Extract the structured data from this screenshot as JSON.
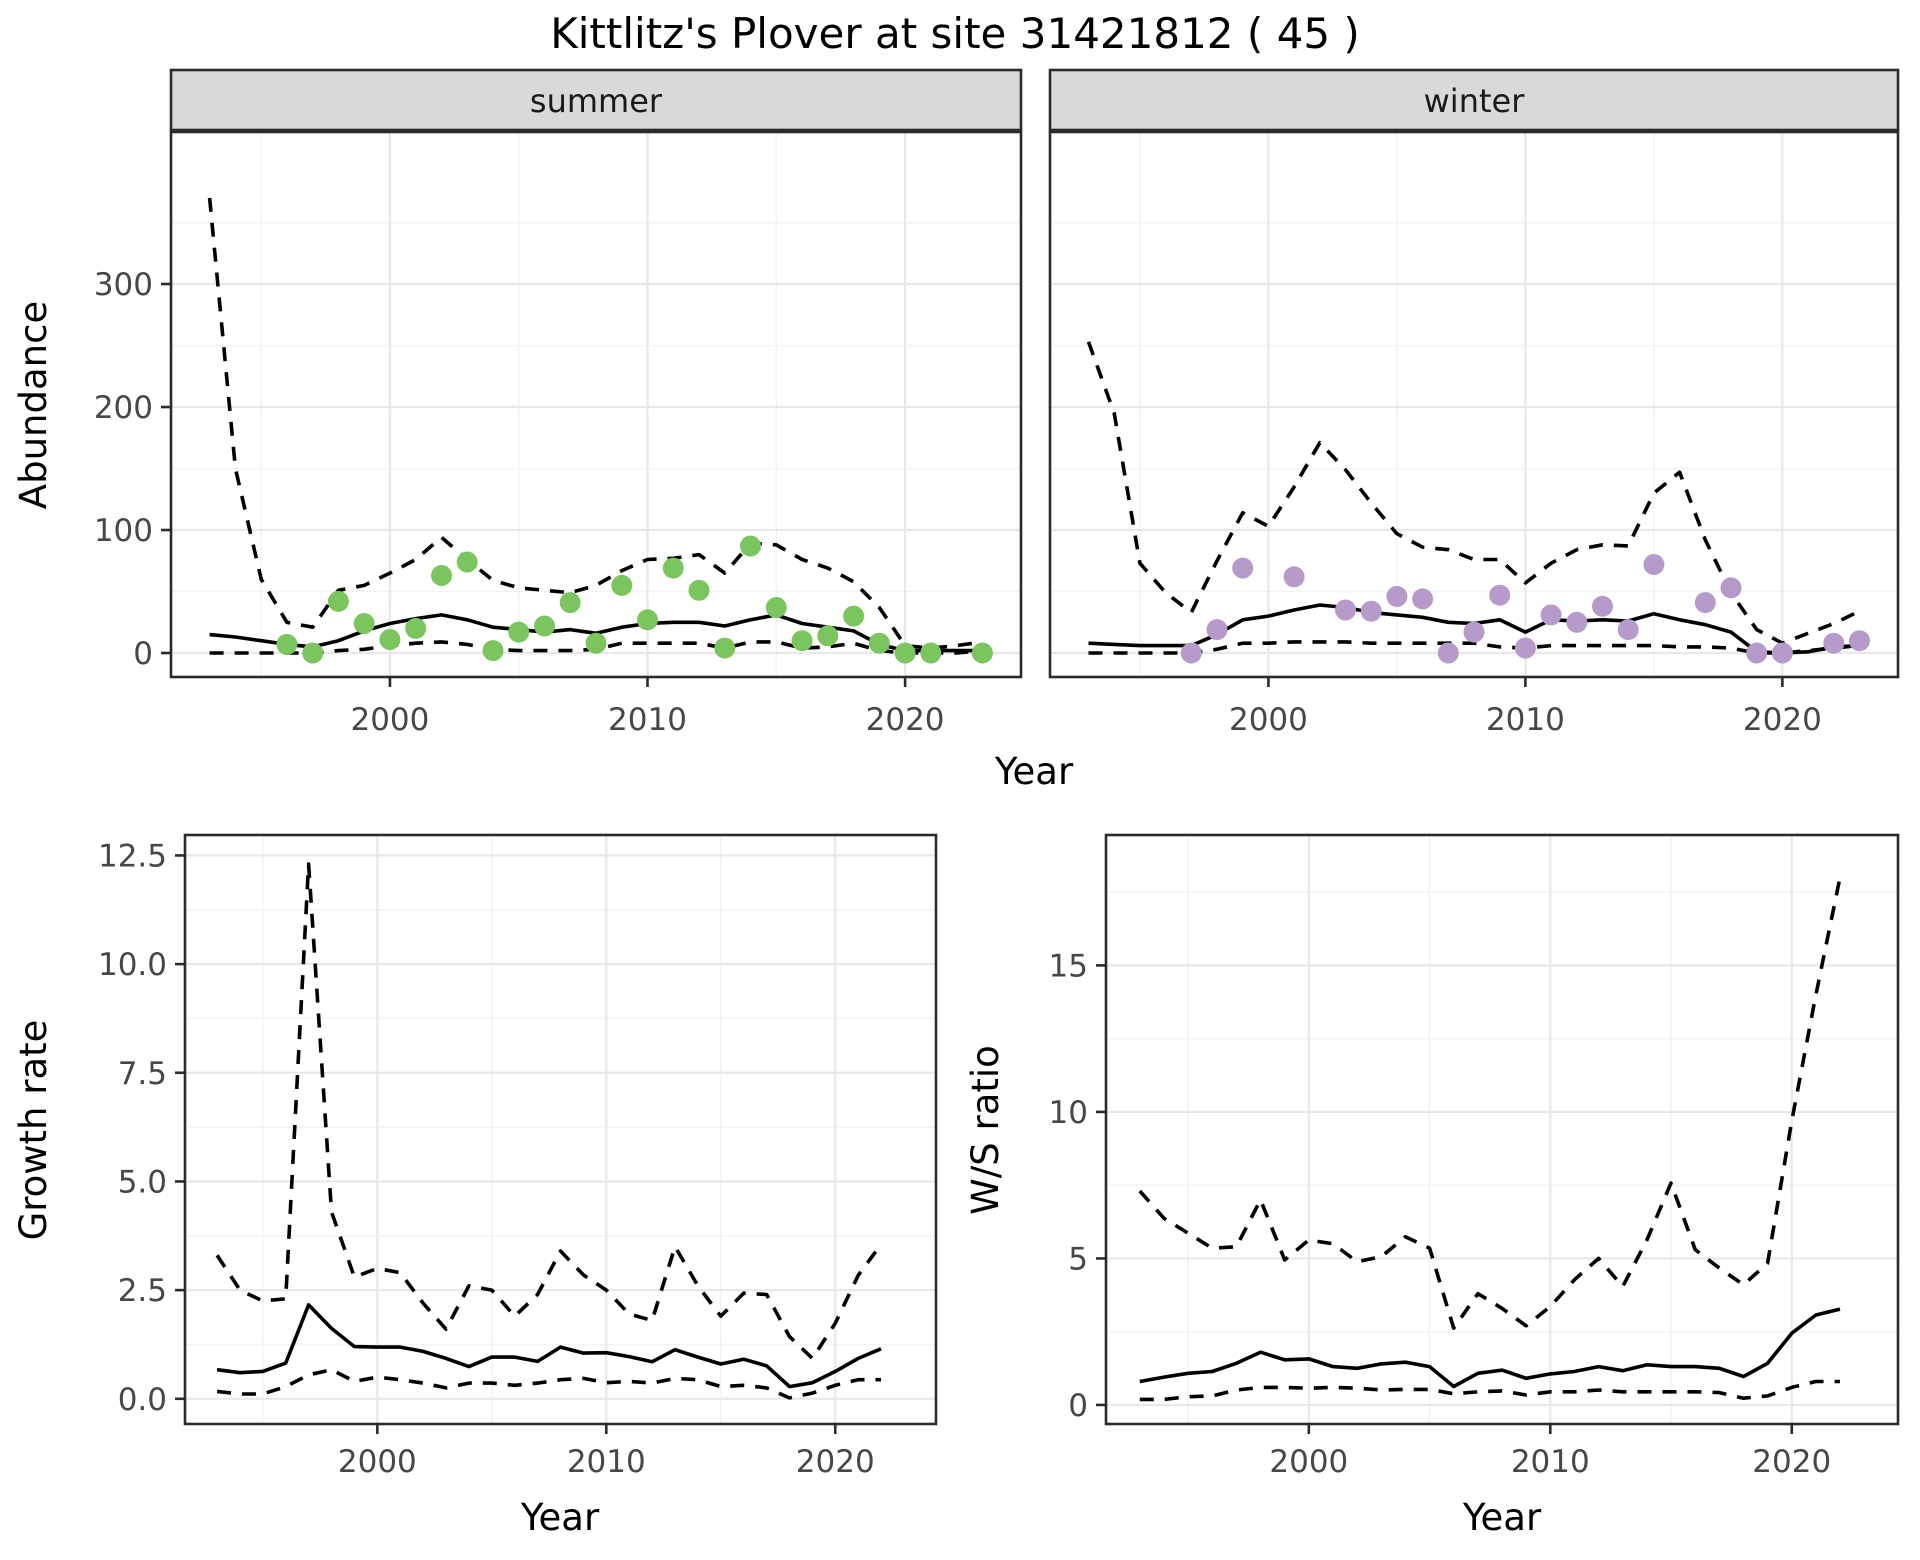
{
  "title": "Kittlitz's Plover at site 31421812 ( 45 )",
  "row1_xlabel": "Year",
  "colors": {
    "summer_points": "#7bc55e",
    "winter_points": "#b69bca",
    "line": "#000000",
    "strip_bg": "#d9d9d9",
    "panel_border": "#2b2b2b",
    "grid_major": "#e8e8e8",
    "grid_minor": "#f3f3f3",
    "axis_tick": "#2b2b2b",
    "axis_text": "#474747"
  },
  "chart_data": [
    {
      "id": "abundance-summer",
      "type": "line",
      "facet_label": "summer",
      "ylabel": "Abundance",
      "xlabel": "",
      "xlim": [
        1991.5,
        2024.5
      ],
      "ylim": [
        -19.5,
        423.6
      ],
      "xticks": [
        2000,
        2010,
        2020
      ],
      "xtick_labels": [
        "2000",
        "2010",
        "2020"
      ],
      "yticks": [
        0,
        100,
        200,
        300
      ],
      "ytick_labels": [
        "0",
        "100",
        "200",
        "300"
      ],
      "x_minor": [
        1995,
        2005,
        2015
      ],
      "y_minor": [
        50,
        150,
        250,
        350
      ],
      "grid": true,
      "legend": "none",
      "point_color": "#7bc55e",
      "series": [
        {
          "name": "upper_ci",
          "style": "dashed",
          "x": [
            1993,
            1994,
            1995,
            1996,
            1997,
            1998,
            1999,
            2000,
            2001,
            2002,
            2003,
            2004,
            2005,
            2006,
            2007,
            2008,
            2009,
            2010,
            2011,
            2012,
            2013,
            2014,
            2015,
            2016,
            2017,
            2018,
            2019,
            2020,
            2021,
            2022,
            2023
          ],
          "y": [
            370,
            150,
            60,
            25,
            21,
            51,
            55,
            65,
            76,
            94,
            76,
            59,
            53,
            51,
            49,
            55,
            67,
            76,
            77,
            80,
            65,
            89,
            88,
            76,
            69,
            58,
            37,
            6,
            4,
            6,
            9
          ]
        },
        {
          "name": "median",
          "style": "solid",
          "x": [
            1993,
            1994,
            1995,
            1996,
            1997,
            1998,
            1999,
            2000,
            2001,
            2002,
            2003,
            2004,
            2005,
            2006,
            2007,
            2008,
            2009,
            2010,
            2011,
            2012,
            2013,
            2014,
            2015,
            2016,
            2017,
            2018,
            2019,
            2020,
            2021,
            2022,
            2023
          ],
          "y": [
            15,
            13,
            10,
            7,
            5,
            10,
            18,
            24,
            28,
            31,
            27,
            21,
            19,
            17,
            19,
            16,
            21,
            24,
            25,
            25,
            22,
            27,
            31,
            24,
            21,
            18,
            7,
            2,
            2,
            2,
            2
          ]
        },
        {
          "name": "lower_ci",
          "style": "dashed",
          "x": [
            1993,
            1994,
            1995,
            1996,
            1997,
            1998,
            1999,
            2000,
            2001,
            2002,
            2003,
            2004,
            2005,
            2006,
            2007,
            2008,
            2009,
            2010,
            2011,
            2012,
            2013,
            2014,
            2015,
            2016,
            2017,
            2018,
            2019,
            2020,
            2021,
            2022,
            2023
          ],
          "y": [
            0,
            0,
            0,
            0,
            0,
            2,
            3,
            6,
            8,
            9,
            7,
            3,
            2,
            2,
            2,
            3,
            8,
            8,
            8,
            8,
            4,
            9,
            9,
            4,
            5,
            8,
            2,
            0,
            0,
            0,
            2
          ]
        }
      ],
      "points": {
        "x": [
          1996,
          1997,
          1998,
          1999,
          2000,
          2001,
          2002,
          2003,
          2004,
          2005,
          2006,
          2007,
          2008,
          2009,
          2010,
          2011,
          2012,
          2013,
          2014,
          2015,
          2016,
          2017,
          2018,
          2019,
          2020,
          2021,
          2023
        ],
        "y": [
          7,
          0,
          42,
          24,
          11,
          20,
          63,
          74,
          2,
          17,
          22,
          41,
          8,
          55,
          27,
          69,
          51,
          4,
          87,
          37,
          10,
          14,
          30,
          8,
          0,
          0,
          0
        ]
      }
    },
    {
      "id": "abundance-winter",
      "type": "line",
      "facet_label": "winter",
      "ylabel": "",
      "xlabel": "",
      "xlim": [
        1991.5,
        2024.5
      ],
      "ylim": [
        -19.5,
        423.6
      ],
      "xticks": [
        2000,
        2010,
        2020
      ],
      "xtick_labels": [
        "2000",
        "2010",
        "2020"
      ],
      "yticks": [
        0,
        100,
        200,
        300
      ],
      "ytick_labels": [
        "0",
        "100",
        "200",
        "300"
      ],
      "x_minor": [
        1995,
        2005,
        2015
      ],
      "y_minor": [
        50,
        150,
        250,
        350
      ],
      "grid": true,
      "legend": "none",
      "point_color": "#b69bca",
      "series": [
        {
          "name": "upper_ci",
          "style": "dashed",
          "x": [
            1993,
            1994,
            1995,
            1996,
            1997,
            1998,
            1999,
            2000,
            2001,
            2002,
            2003,
            2004,
            2005,
            2006,
            2007,
            2008,
            2009,
            2010,
            2011,
            2012,
            2013,
            2014,
            2015,
            2016,
            2017,
            2018,
            2019,
            2020,
            2021,
            2022,
            2023
          ],
          "y": [
            253,
            195,
            73,
            49,
            33,
            75,
            114,
            103,
            135,
            171,
            149,
            122,
            97,
            86,
            84,
            76,
            76,
            57,
            73,
            84,
            88,
            87,
            130,
            147,
            92,
            49,
            19,
            8,
            16,
            24,
            34
          ]
        },
        {
          "name": "median",
          "style": "solid",
          "x": [
            1993,
            1994,
            1995,
            1996,
            1997,
            1998,
            1999,
            2000,
            2001,
            2002,
            2003,
            2004,
            2005,
            2006,
            2007,
            2008,
            2009,
            2010,
            2011,
            2012,
            2013,
            2014,
            2015,
            2016,
            2017,
            2018,
            2019,
            2020,
            2021,
            2022,
            2023
          ],
          "y": [
            8,
            7,
            6,
            6,
            6,
            15,
            27,
            30,
            35,
            39,
            37,
            33,
            31,
            29,
            25,
            24,
            27,
            17,
            27,
            26,
            27,
            26,
            32,
            27,
            23,
            17,
            1,
            0,
            1,
            5,
            6
          ]
        },
        {
          "name": "lower_ci",
          "style": "dashed",
          "x": [
            1993,
            1994,
            1995,
            1996,
            1997,
            1998,
            1999,
            2000,
            2001,
            2002,
            2003,
            2004,
            2005,
            2006,
            2007,
            2008,
            2009,
            2010,
            2011,
            2012,
            2013,
            2014,
            2015,
            2016,
            2017,
            2018,
            2019,
            2020,
            2021,
            2022,
            2023
          ],
          "y": [
            0,
            0,
            0,
            0,
            0,
            3,
            8,
            8,
            9,
            9,
            9,
            8,
            8,
            8,
            8,
            8,
            5,
            4,
            6,
            6,
            6,
            6,
            6,
            5,
            5,
            4,
            0,
            0,
            2,
            4,
            6
          ]
        }
      ],
      "points": {
        "x": [
          1997,
          1998,
          1999,
          2001,
          2003,
          2004,
          2005,
          2006,
          2007,
          2008,
          2009,
          2010,
          2011,
          2012,
          2013,
          2014,
          2015,
          2017,
          2018,
          2019,
          2020,
          2022,
          2023
        ],
        "y": [
          0,
          19,
          69,
          62,
          35,
          34,
          46,
          44,
          0,
          17,
          47,
          4,
          31,
          25,
          38,
          19,
          72,
          41,
          53,
          0,
          0,
          8,
          10
        ]
      }
    },
    {
      "id": "growth-rate",
      "type": "line",
      "facet_label": "",
      "ylabel": "Growth rate",
      "xlabel": "Year",
      "xlim": [
        1991.6,
        2024.4
      ],
      "ylim": [
        -0.58,
        12.97
      ],
      "xticks": [
        2000,
        2010,
        2020
      ],
      "xtick_labels": [
        "2000",
        "2010",
        "2020"
      ],
      "yticks": [
        0,
        2.5,
        5,
        7.5,
        10,
        12.5
      ],
      "ytick_labels": [
        "0.0",
        "2.5",
        "5.0",
        "7.5",
        "10.0",
        "12.5"
      ],
      "x_minor": [
        1995,
        2005,
        2015
      ],
      "y_minor": [
        1.25,
        3.75,
        6.25,
        8.75,
        11.25
      ],
      "grid": true,
      "legend": "none",
      "point_color": "",
      "series": [
        {
          "name": "upper_ci",
          "style": "dashed",
          "x": [
            1993,
            1994,
            1995,
            1996,
            1997,
            1998,
            1999,
            2000,
            2001,
            2002,
            2003,
            2004,
            2005,
            2006,
            2007,
            2008,
            2009,
            2010,
            2011,
            2012,
            2013,
            2014,
            2015,
            2016,
            2017,
            2018,
            2019,
            2020,
            2021,
            2022
          ],
          "y": [
            3.3,
            2.5,
            2.25,
            2.3,
            12.3,
            4.3,
            2.8,
            3.0,
            2.9,
            2.2,
            1.6,
            2.6,
            2.5,
            1.9,
            2.4,
            3.4,
            2.85,
            2.5,
            1.95,
            1.8,
            3.5,
            2.6,
            1.9,
            2.43,
            2.4,
            1.43,
            0.93,
            1.74,
            2.84,
            3.55
          ]
        },
        {
          "name": "median",
          "style": "solid",
          "x": [
            1993,
            1994,
            1995,
            1996,
            1997,
            1998,
            1999,
            2000,
            2001,
            2002,
            2003,
            2004,
            2005,
            2006,
            2007,
            2008,
            2009,
            2010,
            2011,
            2012,
            2013,
            2014,
            2015,
            2016,
            2017,
            2018,
            2019,
            2020,
            2021,
            2022
          ],
          "y": [
            0.67,
            0.6,
            0.63,
            0.82,
            2.16,
            1.62,
            1.2,
            1.19,
            1.19,
            1.09,
            0.93,
            0.74,
            0.96,
            0.96,
            0.86,
            1.19,
            1.05,
            1.06,
            0.97,
            0.85,
            1.13,
            0.96,
            0.8,
            0.91,
            0.76,
            0.28,
            0.37,
            0.63,
            0.93,
            1.15
          ]
        },
        {
          "name": "lower_ci",
          "style": "dashed",
          "x": [
            1993,
            1994,
            1995,
            1996,
            1997,
            1998,
            1999,
            2000,
            2001,
            2002,
            2003,
            2004,
            2005,
            2006,
            2007,
            2008,
            2009,
            2010,
            2011,
            2012,
            2013,
            2014,
            2015,
            2016,
            2017,
            2018,
            2019,
            2020,
            2021,
            2022
          ],
          "y": [
            0.17,
            0.11,
            0.11,
            0.28,
            0.55,
            0.67,
            0.4,
            0.5,
            0.44,
            0.36,
            0.25,
            0.36,
            0.36,
            0.31,
            0.36,
            0.44,
            0.47,
            0.37,
            0.4,
            0.36,
            0.47,
            0.44,
            0.28,
            0.31,
            0.25,
            0.02,
            0.13,
            0.31,
            0.44,
            0.44
          ]
        }
      ],
      "points": null
    },
    {
      "id": "ws-ratio",
      "type": "line",
      "facet_label": "",
      "ylabel": "W/S ratio",
      "xlabel": "Year",
      "xlim": [
        1991.6,
        2024.4
      ],
      "ylim": [
        -0.65,
        19.45
      ],
      "xticks": [
        2000,
        2010,
        2020
      ],
      "xtick_labels": [
        "2000",
        "2010",
        "2020"
      ],
      "yticks": [
        0,
        5,
        10,
        15
      ],
      "ytick_labels": [
        "0",
        "5",
        "10",
        "15"
      ],
      "x_minor": [
        1995,
        2005,
        2015
      ],
      "y_minor": [
        2.5,
        7.5,
        12.5,
        17.5
      ],
      "grid": true,
      "legend": "none",
      "point_color": "",
      "series": [
        {
          "name": "upper_ci",
          "style": "dashed",
          "x": [
            1993,
            1994,
            1995,
            1996,
            1997,
            1998,
            1999,
            2000,
            2001,
            2002,
            2003,
            2004,
            2005,
            2006,
            2007,
            2008,
            2009,
            2010,
            2011,
            2012,
            2013,
            2014,
            2015,
            2016,
            2017,
            2018,
            2019,
            2020,
            2021,
            2022
          ],
          "y": [
            7.3,
            6.37,
            5.86,
            5.35,
            5.4,
            7.0,
            4.95,
            5.63,
            5.5,
            4.89,
            5.06,
            5.74,
            5.35,
            2.62,
            3.8,
            3.3,
            2.7,
            3.36,
            4.27,
            5.0,
            4.04,
            5.63,
            7.57,
            5.3,
            4.67,
            4.1,
            4.84,
            9.7,
            14.0,
            18.0
          ]
        },
        {
          "name": "median",
          "style": "solid",
          "x": [
            1993,
            1994,
            1995,
            1996,
            1997,
            1998,
            1999,
            2000,
            2001,
            2002,
            2003,
            2004,
            2005,
            2006,
            2007,
            2008,
            2009,
            2010,
            2011,
            2012,
            2013,
            2014,
            2015,
            2016,
            2017,
            2018,
            2019,
            2020,
            2021,
            2022
          ],
          "y": [
            0.8,
            0.95,
            1.08,
            1.14,
            1.42,
            1.8,
            1.54,
            1.57,
            1.31,
            1.25,
            1.4,
            1.46,
            1.31,
            0.63,
            1.08,
            1.19,
            0.91,
            1.06,
            1.14,
            1.31,
            1.17,
            1.37,
            1.31,
            1.31,
            1.25,
            0.97,
            1.42,
            2.45,
            3.07,
            3.27
          ]
        },
        {
          "name": "lower_ci",
          "style": "dashed",
          "x": [
            1993,
            1994,
            1995,
            1996,
            1997,
            1998,
            1999,
            2000,
            2001,
            2002,
            2003,
            2004,
            2005,
            2006,
            2007,
            2008,
            2009,
            2010,
            2011,
            2012,
            2013,
            2014,
            2015,
            2016,
            2017,
            2018,
            2019,
            2020,
            2021,
            2022
          ],
          "y": [
            0.19,
            0.19,
            0.28,
            0.31,
            0.51,
            0.6,
            0.6,
            0.57,
            0.6,
            0.57,
            0.51,
            0.53,
            0.53,
            0.38,
            0.45,
            0.48,
            0.34,
            0.45,
            0.45,
            0.51,
            0.45,
            0.45,
            0.45,
            0.45,
            0.42,
            0.23,
            0.31,
            0.6,
            0.8,
            0.8
          ]
        }
      ],
      "points": null
    }
  ]
}
